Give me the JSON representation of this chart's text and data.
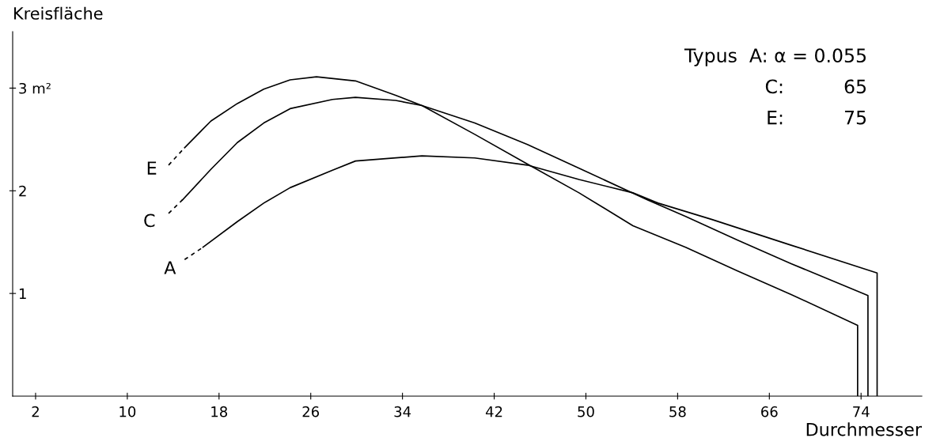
{
  "chart_data": {
    "type": "line",
    "xlabel": "Durchmesser",
    "ylabel": "Kreisfläche",
    "xlim": [
      0,
      79.3
    ],
    "xticks": [
      2,
      10,
      18,
      26,
      34,
      42,
      50,
      58,
      66,
      74
    ],
    "ylim": [
      0,
      3.55
    ],
    "yticks": [
      1,
      2,
      {
        "value": 3,
        "label": "3 m²"
      }
    ],
    "grid": false,
    "legend": false,
    "series": [
      {
        "color": "#000000",
        "line_style": "dashed",
        "x": [
          13.6,
          15.0
        ],
        "values": [
          2.25,
          2.42
        ]
      },
      {
        "name": "E",
        "color": "#000000",
        "line_style": "solid",
        "x": [
          15.0,
          17.3,
          19.6,
          21.9,
          24.2,
          26.5,
          29.9,
          33.4,
          35.7,
          40.3,
          44.9,
          49.4,
          54.1,
          58.7,
          63.2,
          67.9,
          73.7,
          73.7
        ],
        "values": [
          2.42,
          2.68,
          2.85,
          2.99,
          3.08,
          3.11,
          3.07,
          2.93,
          2.83,
          2.55,
          2.26,
          1.98,
          1.66,
          1.45,
          1.22,
          0.99,
          0.69,
          0
        ]
      },
      {
        "color": "#000000",
        "line_style": "dashed",
        "x": [
          13.6,
          14.8
        ],
        "values": [
          1.78,
          1.91
        ]
      },
      {
        "name": "C",
        "color": "#000000",
        "line_style": "solid",
        "x": [
          14.8,
          17.3,
          19.6,
          21.9,
          24.2,
          27.9,
          29.9,
          33.4,
          35.7,
          40.3,
          44.9,
          49.4,
          55.4,
          58.7,
          63.2,
          67.9,
          74.6,
          74.6
        ],
        "values": [
          1.91,
          2.21,
          2.47,
          2.66,
          2.8,
          2.89,
          2.91,
          2.88,
          2.83,
          2.66,
          2.45,
          2.22,
          1.91,
          1.75,
          1.52,
          1.29,
          0.98,
          0
        ]
      },
      {
        "color": "#000000",
        "line_style": "dashed",
        "x": [
          15.0,
          16.6
        ],
        "values": [
          1.33,
          1.45
        ]
      },
      {
        "name": "A",
        "color": "#000000",
        "line_style": "solid",
        "x": [
          16.6,
          19.6,
          21.9,
          24.2,
          27.9,
          29.9,
          35.7,
          40.3,
          44.9,
          49.4,
          54.1,
          56.3,
          61.0,
          67.9,
          75.4,
          75.4
        ],
        "values": [
          1.45,
          1.7,
          1.88,
          2.03,
          2.2,
          2.29,
          2.34,
          2.32,
          2.25,
          2.11,
          1.98,
          1.88,
          1.72,
          1.47,
          1.2,
          0
        ]
      }
    ],
    "annotations": [
      "Typus  A: α = 0.055",
      "C:          65",
      "E:          75"
    ]
  }
}
